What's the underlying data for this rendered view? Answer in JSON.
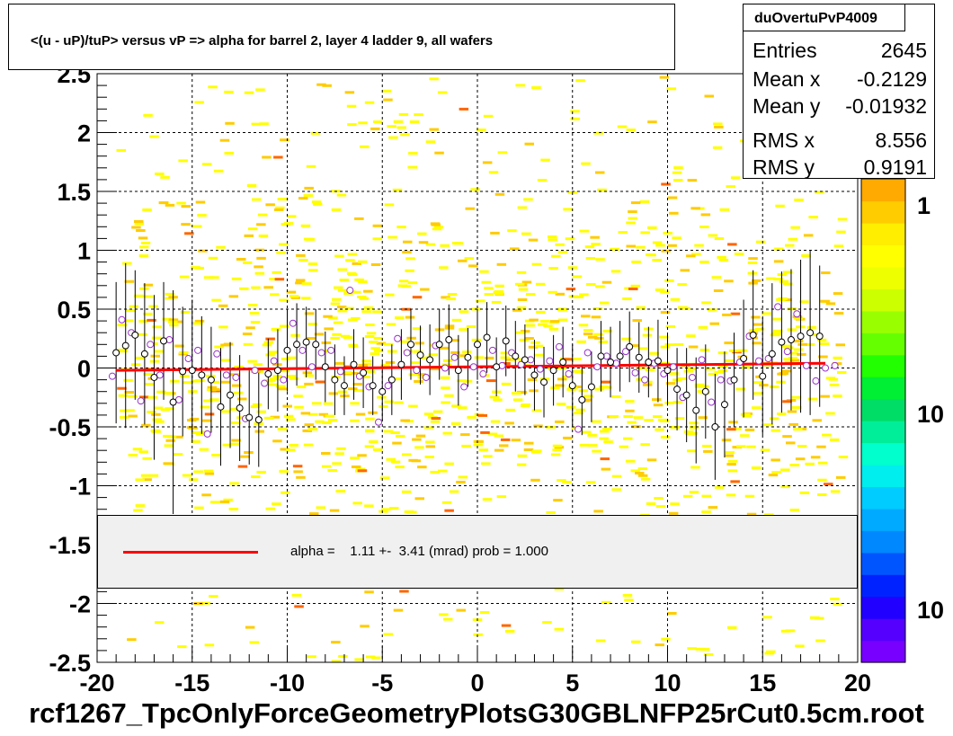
{
  "title": "<(u - uP)/tuP> versus   vP => alpha for barrel 2, layer 4 ladder 9, all wafers",
  "stats": {
    "name": "duOvertuPvP4009",
    "rows": [
      {
        "label": "Entries",
        "value": "2645"
      },
      {
        "label": "Mean x",
        "value": "-0.2129"
      },
      {
        "label": "Mean y",
        "value": "-0.01932"
      },
      {
        "label": "RMS x",
        "value": "8.556"
      },
      {
        "label": "RMS y",
        "value": "0.9191"
      }
    ]
  },
  "legend": {
    "text": "alpha =    1.11 +-  3.41 (mrad) prob = 1.000",
    "color": "#ff0000"
  },
  "footer": "rcf1267_TpcOnlyForceGeometryPlotsG30GBLNFP25rCut0.5cm.root",
  "palette_labels": [
    "1",
    "10",
    "10"
  ],
  "colors": {
    "fit_line": "#ff0000",
    "open_points": "#000000",
    "mean_points": "#9933cc",
    "hist_low": "#ffff00",
    "hist_mid": "#ffcc00",
    "hist_high": "#ff6600"
  },
  "chart_data": {
    "type": "heatmap",
    "xlim": [
      -20,
      20
    ],
    "ylim": [
      -2.5,
      2.5
    ],
    "x_ticks": [
      "-20",
      "-15",
      "-10",
      "-5",
      "0",
      "5",
      "10",
      "15",
      "20"
    ],
    "y_ticks": [
      "-2.5",
      "-2",
      "-1.5",
      "-1",
      "-0.5",
      "0",
      "0.5",
      "1",
      "1.5",
      "2",
      "2.5"
    ],
    "grid": true,
    "z_scale": "log",
    "fit": {
      "x": [
        -19,
        18.3
      ],
      "y": [
        -0.02,
        0.04
      ]
    },
    "profile_black": {
      "x": [
        -19,
        -18.5,
        -18,
        -17.5,
        -17,
        -16.5,
        -16,
        -15.5,
        -15,
        -14.5,
        -14,
        -13.5,
        -13,
        -12.5,
        -12,
        -11.5,
        -11,
        -10.5,
        -10,
        -9.5,
        -9,
        -8.5,
        -8,
        -7.5,
        -7,
        -6.5,
        -6,
        -5.5,
        -5,
        -4.5,
        -4,
        -3.5,
        -3,
        -2.5,
        -2,
        -1.5,
        -1,
        -0.5,
        0,
        0.5,
        1,
        1.5,
        2,
        2.5,
        3,
        3.5,
        4,
        4.5,
        5,
        5.5,
        6,
        6.5,
        7,
        7.5,
        8,
        8.5,
        9,
        9.5,
        10,
        10.5,
        11,
        11.5,
        12,
        12.5,
        13,
        13.5,
        14,
        14.5,
        15,
        15.5,
        16,
        16.5,
        17,
        17.5,
        18
      ],
      "y": [
        0.13,
        0.19,
        0.28,
        0.12,
        -0.08,
        0.23,
        -0.29,
        -0.03,
        -0.02,
        -0.06,
        -0.1,
        -0.33,
        -0.23,
        -0.34,
        -0.42,
        -0.44,
        -0.05,
        -0.02,
        0.15,
        0.2,
        0.22,
        0.2,
        0.01,
        -0.1,
        -0.15,
        0.03,
        -0.04,
        -0.15,
        -0.2,
        -0.1,
        0.03,
        0.2,
        0.11,
        0.07,
        0.2,
        0.24,
        -0.02,
        0.09,
        0.2,
        0.26,
        0.01,
        0.23,
        0.1,
        0.07,
        -0.06,
        -0.12,
        -0.02,
        0.05,
        -0.15,
        -0.27,
        -0.16,
        0.1,
        0.05,
        0.1,
        0.18,
        0.09,
        0.05,
        0.06,
        -0.02,
        -0.18,
        -0.23,
        -0.36,
        -0.2,
        -0.5,
        -0.31,
        -0.1,
        0.08,
        0.28,
        -0.07,
        0.12,
        0.22,
        0.24,
        0.27,
        0.3,
        0.27
      ],
      "err": [
        0.6,
        0.7,
        0.55,
        0.6,
        0.7,
        0.5,
        0.95,
        0.55,
        0.6,
        0.5,
        0.45,
        0.5,
        0.45,
        0.45,
        0.4,
        0.4,
        0.3,
        0.35,
        0.35,
        0.35,
        0.3,
        0.3,
        0.3,
        0.3,
        0.25,
        0.3,
        0.3,
        0.25,
        0.25,
        0.3,
        0.3,
        0.3,
        0.25,
        0.3,
        0.3,
        0.3,
        0.3,
        0.25,
        0.3,
        0.3,
        0.25,
        0.3,
        0.3,
        0.3,
        0.3,
        0.3,
        0.3,
        0.3,
        0.35,
        0.3,
        0.3,
        0.3,
        0.3,
        0.3,
        0.3,
        0.3,
        0.3,
        0.35,
        0.3,
        0.35,
        0.4,
        0.45,
        0.4,
        0.45,
        0.45,
        0.4,
        0.5,
        0.55,
        0.5,
        0.6,
        0.6,
        0.6,
        0.65,
        0.7,
        0.6
      ]
    },
    "profile_purple": {
      "x": [
        -19.2,
        -18.7,
        -18.2,
        -17.7,
        -17.2,
        -16.7,
        -16.2,
        -15.7,
        -15.2,
        -14.7,
        -14.2,
        -13.7,
        -13.2,
        -12.7,
        -12.2,
        -11.7,
        -11.2,
        -10.7,
        -10.2,
        -9.7,
        -9.2,
        -8.7,
        -8.2,
        -7.7,
        -7.2,
        -6.7,
        -6.2,
        -5.7,
        -5.2,
        -4.7,
        -4.2,
        -3.7,
        -3.2,
        -2.7,
        -2.2,
        -1.7,
        -1.2,
        -0.7,
        -0.2,
        0.3,
        0.8,
        1.3,
        1.8,
        2.3,
        2.8,
        3.3,
        3.8,
        4.3,
        4.8,
        5.3,
        5.8,
        6.3,
        6.8,
        7.3,
        7.8,
        8.3,
        8.8,
        9.3,
        9.8,
        10.3,
        10.8,
        11.3,
        11.8,
        12.3,
        12.8,
        13.3,
        13.8,
        14.3,
        14.8,
        15.3,
        15.8,
        16.3,
        16.8,
        17.3,
        17.8,
        18.3,
        18.8
      ],
      "y": [
        -0.07,
        0.41,
        0.3,
        -0.28,
        0.2,
        -0.06,
        0.24,
        -0.27,
        0.08,
        0.15,
        -0.56,
        0.12,
        -0.06,
        -0.08,
        -0.43,
        -0.02,
        -0.13,
        0.06,
        -0.1,
        0.38,
        0.15,
        0.01,
        0.13,
        0.15,
        -0.03,
        0.66,
        -0.07,
        -0.16,
        -0.46,
        -0.15,
        0.25,
        0.13,
        -0.02,
        -0.08,
        0.19,
        0.0,
        0.09,
        -0.16,
        0.01,
        -0.05,
        0.15,
        0.02,
        0.13,
        0.03,
        0.07,
        -0.01,
        0.06,
        0.18,
        -0.05,
        -0.52,
        0.13,
        0.01,
        0.1,
        0.04,
        0.14,
        -0.04,
        -0.1,
        0.04,
        -0.05,
        0.01,
        -0.25,
        -0.08,
        0.07,
        -0.29,
        -0.1,
        -0.11,
        0.05,
        0.27,
        0.06,
        0.08,
        0.52,
        0.14,
        0.46,
        0.02,
        -0.11,
        0.0,
        0.02
      ]
    }
  }
}
